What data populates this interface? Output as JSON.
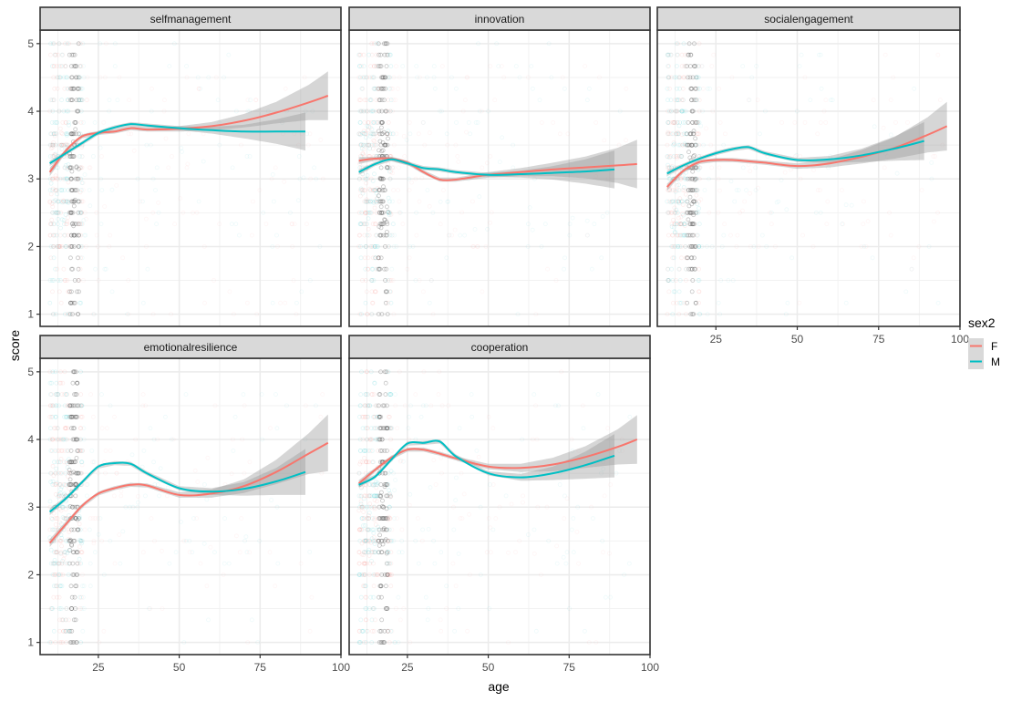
{
  "chart_data": {
    "type": "scatter",
    "subtype": "faceted scatter with loess smooth and confidence bands",
    "xlabel": "age",
    "ylabel": "score",
    "xlim": [
      7,
      100
    ],
    "ylim": [
      0.82,
      5.2
    ],
    "x_ticks": [
      25,
      50,
      75,
      100
    ],
    "x_tick_labels": [
      "25",
      "50",
      "75",
      "100"
    ],
    "y_ticks": [
      1,
      2,
      3,
      4,
      5
    ],
    "y_tick_labels": [
      "1",
      "2",
      "3",
      "4",
      "5"
    ],
    "grid": true,
    "legend": {
      "title": "sex2",
      "position": "right",
      "entries": [
        {
          "label": "F",
          "color": "#F8766D"
        },
        {
          "label": "M",
          "color": "#00BFC4"
        }
      ]
    },
    "panels": [
      {
        "title": "selfmanagement",
        "series": [
          {
            "name": "F",
            "x": [
              10,
              15,
              20,
              25,
              30,
              35,
              40,
              50,
              60,
              70,
              80,
              90,
              96
            ],
            "y": [
              3.1,
              3.42,
              3.63,
              3.68,
              3.7,
              3.75,
              3.73,
              3.74,
              3.78,
              3.86,
              3.98,
              4.13,
              4.23
            ],
            "ci_width": [
              0.06,
              0.03,
              0.03,
              0.03,
              0.03,
              0.03,
              0.03,
              0.04,
              0.06,
              0.1,
              0.16,
              0.26,
              0.36
            ]
          },
          {
            "name": "M",
            "x": [
              10,
              15,
              20,
              25,
              30,
              35,
              40,
              50,
              60,
              70,
              80,
              89
            ],
            "y": [
              3.23,
              3.38,
              3.53,
              3.68,
              3.76,
              3.81,
              3.79,
              3.75,
              3.72,
              3.7,
              3.7,
              3.7
            ],
            "ci_width": [
              0.04,
              0.03,
              0.03,
              0.03,
              0.03,
              0.03,
              0.03,
              0.03,
              0.05,
              0.1,
              0.18,
              0.28
            ]
          }
        ]
      },
      {
        "title": "innovation",
        "series": [
          {
            "name": "F",
            "x": [
              10,
              15,
              20,
              25,
              30,
              35,
              40,
              50,
              60,
              70,
              80,
              90,
              96
            ],
            "y": [
              3.27,
              3.3,
              3.3,
              3.24,
              3.1,
              2.99,
              2.99,
              3.06,
              3.1,
              3.14,
              3.17,
              3.2,
              3.22
            ],
            "ci_width": [
              0.05,
              0.03,
              0.03,
              0.03,
              0.03,
              0.03,
              0.03,
              0.04,
              0.06,
              0.1,
              0.16,
              0.26,
              0.36
            ]
          },
          {
            "name": "M",
            "x": [
              10,
              15,
              20,
              25,
              30,
              35,
              40,
              50,
              60,
              70,
              80,
              89
            ],
            "y": [
              3.1,
              3.22,
              3.29,
              3.23,
              3.16,
              3.14,
              3.1,
              3.06,
              3.07,
              3.09,
              3.11,
              3.14
            ],
            "ci_width": [
              0.04,
              0.03,
              0.03,
              0.03,
              0.03,
              0.03,
              0.03,
              0.03,
              0.05,
              0.1,
              0.18,
              0.28
            ]
          }
        ]
      },
      {
        "title": "socialengagement",
        "series": [
          {
            "name": "F",
            "x": [
              10,
              15,
              20,
              25,
              30,
              35,
              40,
              50,
              60,
              70,
              80,
              90,
              96
            ],
            "y": [
              2.88,
              3.12,
              3.25,
              3.28,
              3.28,
              3.26,
              3.24,
              3.19,
              3.23,
              3.33,
              3.46,
              3.65,
              3.78
            ],
            "ci_width": [
              0.05,
              0.03,
              0.03,
              0.03,
              0.03,
              0.03,
              0.03,
              0.04,
              0.06,
              0.1,
              0.16,
              0.26,
              0.36
            ]
          },
          {
            "name": "M",
            "x": [
              10,
              15,
              20,
              25,
              30,
              35,
              40,
              50,
              60,
              70,
              80,
              89
            ],
            "y": [
              3.08,
              3.2,
              3.3,
              3.38,
              3.44,
              3.47,
              3.38,
              3.28,
              3.29,
              3.35,
              3.45,
              3.56
            ],
            "ci_width": [
              0.04,
              0.03,
              0.03,
              0.03,
              0.03,
              0.03,
              0.03,
              0.03,
              0.05,
              0.1,
              0.18,
              0.28
            ]
          }
        ]
      },
      {
        "title": "emotionalresilience",
        "series": [
          {
            "name": "F",
            "x": [
              10,
              15,
              20,
              25,
              30,
              35,
              40,
              50,
              60,
              70,
              80,
              90,
              96
            ],
            "y": [
              2.47,
              2.75,
              3.02,
              3.2,
              3.28,
              3.33,
              3.32,
              3.18,
              3.2,
              3.31,
              3.52,
              3.79,
              3.95
            ],
            "ci_width": [
              0.06,
              0.04,
              0.03,
              0.03,
              0.03,
              0.03,
              0.03,
              0.04,
              0.06,
              0.1,
              0.18,
              0.3,
              0.42
            ]
          },
          {
            "name": "M",
            "x": [
              10,
              15,
              20,
              25,
              30,
              35,
              40,
              50,
              60,
              70,
              80,
              89
            ],
            "y": [
              2.93,
              3.13,
              3.37,
              3.6,
              3.65,
              3.64,
              3.5,
              3.28,
              3.23,
              3.27,
              3.38,
              3.52
            ],
            "ci_width": [
              0.05,
              0.03,
              0.03,
              0.03,
              0.03,
              0.03,
              0.03,
              0.03,
              0.05,
              0.1,
              0.2,
              0.34
            ]
          }
        ]
      },
      {
        "title": "cooperation",
        "series": [
          {
            "name": "F",
            "x": [
              10,
              15,
              20,
              25,
              30,
              35,
              40,
              50,
              60,
              70,
              80,
              90,
              96
            ],
            "y": [
              3.35,
              3.55,
              3.73,
              3.85,
              3.85,
              3.79,
              3.72,
              3.6,
              3.58,
              3.63,
              3.74,
              3.89,
              4.0
            ],
            "ci_width": [
              0.05,
              0.03,
              0.03,
              0.03,
              0.03,
              0.03,
              0.03,
              0.04,
              0.06,
              0.1,
              0.16,
              0.26,
              0.36
            ]
          },
          {
            "name": "M",
            "x": [
              10,
              15,
              20,
              25,
              30,
              35,
              40,
              50,
              60,
              70,
              80,
              89
            ],
            "y": [
              3.33,
              3.45,
              3.7,
              3.94,
              3.95,
              3.97,
              3.75,
              3.5,
              3.44,
              3.5,
              3.62,
              3.76
            ],
            "ci_width": [
              0.04,
              0.03,
              0.03,
              0.03,
              0.03,
              0.03,
              0.03,
              0.03,
              0.05,
              0.1,
              0.2,
              0.32
            ]
          }
        ]
      }
    ]
  }
}
